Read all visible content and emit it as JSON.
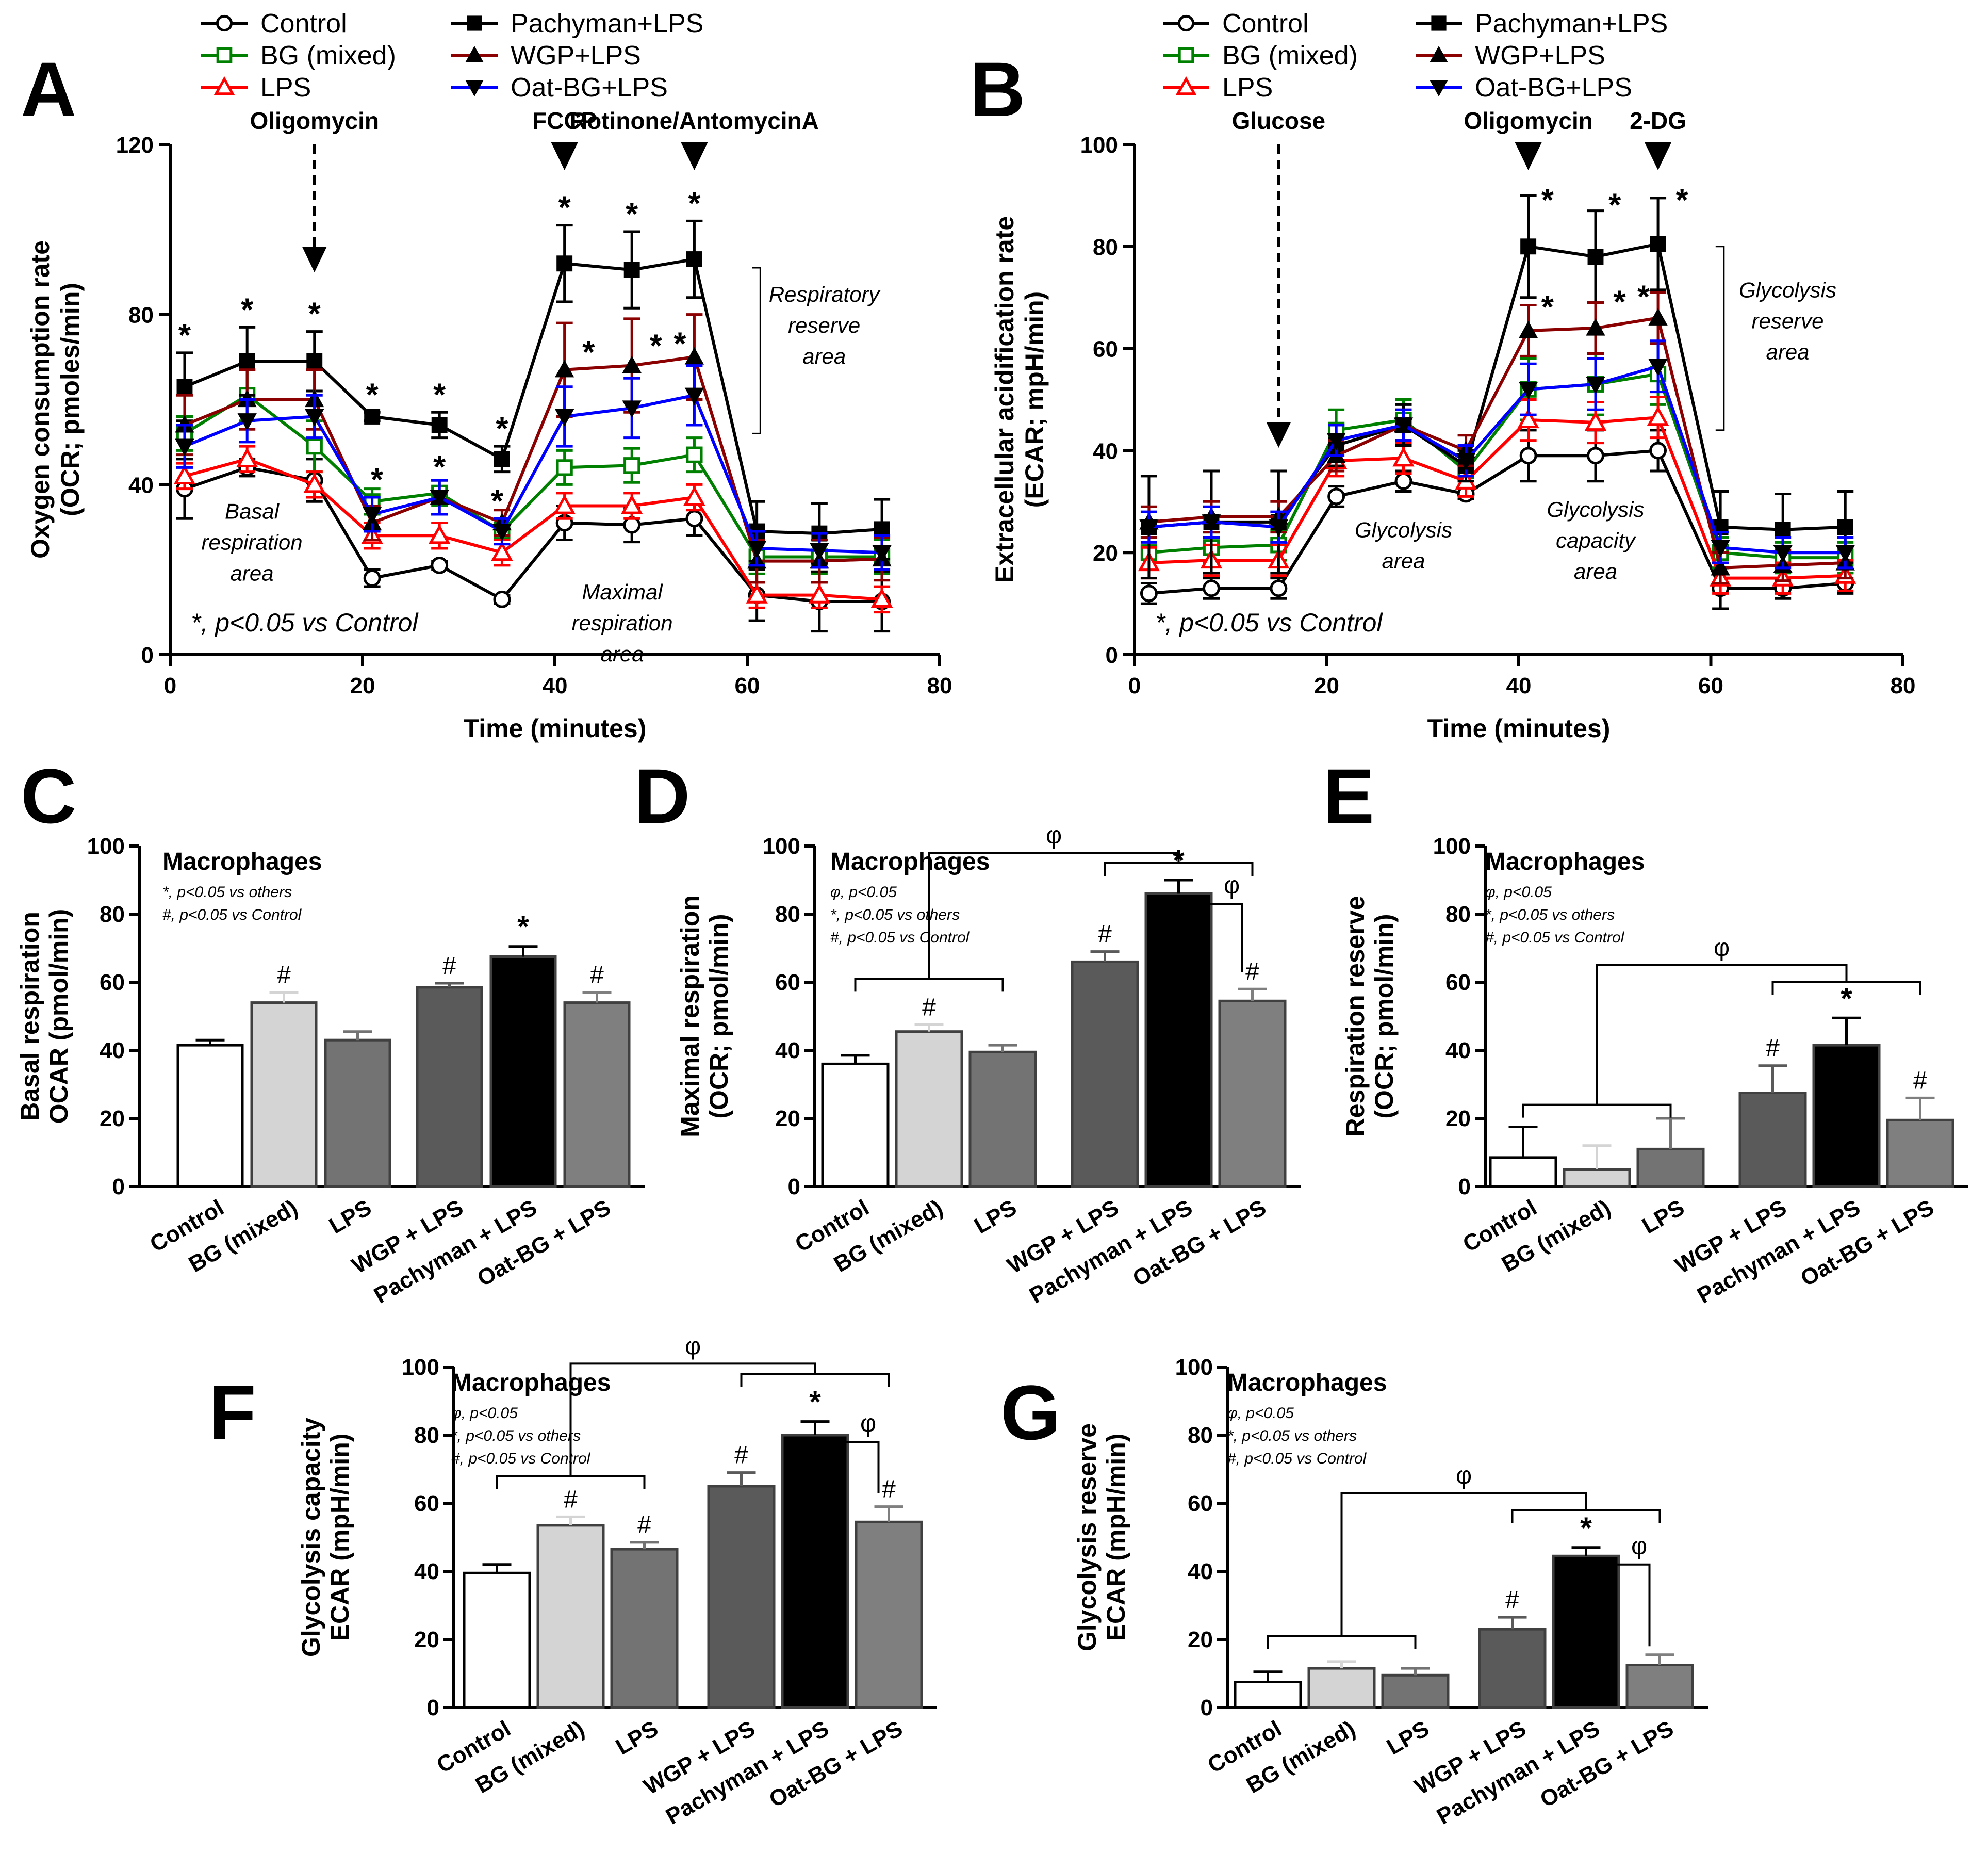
{
  "chart_data": [
    {
      "panel": "A",
      "type": "line",
      "xlabel": "Time (minutes)",
      "ylabel": [
        "Oxygen consumption rate",
        "(OCR; pmoles/min)"
      ],
      "xlim": [
        0,
        80
      ],
      "ylim": [
        0,
        120
      ],
      "xticks": [
        0,
        20,
        40,
        60,
        80
      ],
      "yticks": [
        0,
        40,
        80,
        120
      ],
      "x": [
        1.5,
        8,
        15,
        21,
        28,
        34.5,
        41,
        48,
        54.5,
        61,
        67.5,
        74
      ],
      "series": [
        {
          "name": "Control",
          "color": "#000000",
          "marker": "circle-open",
          "values": [
            39,
            44,
            41,
            18,
            21,
            13,
            31,
            30.5,
            32,
            14,
            12.5,
            12.5
          ],
          "err": [
            7,
            2,
            5,
            2,
            1,
            1,
            4,
            4,
            4,
            6,
            7,
            7
          ]
        },
        {
          "name": "BG (mixed)",
          "color": "#008000",
          "marker": "square-open",
          "values": [
            52,
            61,
            49,
            36,
            38,
            29,
            44,
            44.5,
            47,
            23,
            23,
            23
          ],
          "err": [
            4,
            6,
            6,
            3,
            3,
            2,
            4,
            4,
            4,
            4,
            4,
            4
          ]
        },
        {
          "name": "LPS",
          "color": "#ff0000",
          "marker": "triangle-open",
          "values": [
            42,
            46,
            40,
            28,
            28,
            24,
            35,
            35,
            37,
            14,
            14,
            13
          ],
          "err": [
            3,
            3,
            3,
            3,
            3,
            3,
            3,
            3,
            3,
            3,
            3,
            3
          ]
        },
        {
          "name": "Pachyman+LPS",
          "color": "#000000",
          "marker": "square-filled",
          "values": [
            63,
            69,
            69,
            56,
            54,
            46,
            92,
            90.5,
            93,
            29,
            28.5,
            29.5
          ],
          "err": [
            8,
            8,
            7,
            1,
            3,
            3,
            9,
            9,
            9,
            7,
            7,
            7
          ]
        },
        {
          "name": "WGP+LPS",
          "color": "#8b0000",
          "marker": "triangle-filled",
          "values": [
            54,
            60,
            60,
            31,
            37,
            31,
            67,
            68,
            70,
            22,
            22,
            22.5
          ],
          "err": [
            7,
            7,
            7,
            4,
            4,
            3,
            11,
            11,
            10,
            5,
            5,
            5
          ]
        },
        {
          "name": "Oat-BG+LPS",
          "color": "#0000ff",
          "marker": "triangle-down-filled",
          "values": [
            49,
            55,
            56,
            33,
            37,
            29,
            56,
            58,
            61,
            25,
            24.5,
            24
          ],
          "err": [
            5,
            5,
            5,
            4,
            4,
            3,
            7,
            7,
            7,
            4,
            4,
            4
          ]
        }
      ],
      "stars_top": [
        {
          "x": 1.5,
          "level": 1
        },
        {
          "x": 8,
          "level": 1
        },
        {
          "x": 15,
          "level": 1
        },
        {
          "x": 21,
          "level": 1
        },
        {
          "x": 28,
          "level": 1
        },
        {
          "x": 34.5,
          "level": 1
        },
        {
          "x": 41,
          "level": 1
        },
        {
          "x": 48,
          "level": 1
        },
        {
          "x": 54.5,
          "level": 1
        }
      ],
      "stars_mid": [
        {
          "x": 21.5,
          "y": 41
        },
        {
          "x": 28,
          "y": 44
        },
        {
          "x": 34,
          "y": 36
        },
        {
          "x": 43.5,
          "y": 71
        },
        {
          "x": 50.5,
          "y": 72.5
        },
        {
          "x": 53,
          "y": 73
        }
      ],
      "injections": [
        {
          "label": "Oligomycin",
          "x": 15,
          "style": "dashed"
        },
        {
          "label": "FCCP",
          "x": 41,
          "style": "triangle"
        },
        {
          "label": "Rotinone/AntomycinA",
          "x": 54.5,
          "style": "triangle"
        }
      ],
      "annotations": [
        {
          "lines": [
            "Basal",
            "respiration",
            "area"
          ],
          "x": 8.5,
          "y": 32
        },
        {
          "lines": [
            "Maximal",
            "respiration",
            "area"
          ],
          "x": 47,
          "y": 13
        },
        {
          "lines": [
            "Respiratory",
            "reserve",
            "area"
          ],
          "x": 68,
          "y": 83
        }
      ],
      "bracket": {
        "x": 60.5,
        "y1": 91,
        "y2": 52
      },
      "footnote": "*, p<0.05 vs Control"
    },
    {
      "panel": "B",
      "type": "line",
      "xlabel": "Time (minutes)",
      "ylabel": [
        "Extracellular acidification rate",
        "(ECAR; mpH/min)"
      ],
      "xlim": [
        0,
        80
      ],
      "ylim": [
        0,
        100
      ],
      "xticks": [
        0,
        20,
        40,
        60,
        80
      ],
      "yticks": [
        0,
        20,
        40,
        60,
        80,
        100
      ],
      "x": [
        1.5,
        8,
        15,
        21,
        28,
        34.5,
        41,
        48,
        54.5,
        61,
        67.5,
        74
      ],
      "series": [
        {
          "name": "Control",
          "color": "#000000",
          "marker": "circle-open",
          "values": [
            12,
            13,
            13,
            31,
            34,
            31.5,
            39,
            39,
            40,
            13,
            13,
            14
          ],
          "err": [
            2,
            2,
            2,
            2,
            2,
            1,
            5,
            5,
            4,
            4,
            2,
            2
          ]
        },
        {
          "name": "BG (mixed)",
          "color": "#008000",
          "marker": "square-open",
          "values": [
            20,
            21,
            21.5,
            44,
            46,
            36,
            52,
            53,
            55,
            20,
            19,
            19
          ],
          "err": [
            3,
            3,
            3,
            4,
            4,
            3,
            6,
            6,
            6,
            3,
            3,
            3
          ]
        },
        {
          "name": "LPS",
          "color": "#ff0000",
          "marker": "triangle-open",
          "values": [
            18,
            18.5,
            18.5,
            38,
            38.5,
            34,
            46,
            45.5,
            46.5,
            15,
            15,
            15.5
          ],
          "err": [
            3,
            3,
            3,
            3,
            3,
            3,
            4,
            4,
            4,
            3,
            3,
            3
          ]
        },
        {
          "name": "Pachyman+LPS",
          "color": "#000000",
          "marker": "square-filled",
          "values": [
            25,
            26,
            26,
            41,
            45,
            37,
            80,
            78,
            80.5,
            25,
            24.5,
            25
          ],
          "err": [
            10,
            10,
            10,
            4,
            4,
            3,
            10,
            9,
            9,
            7,
            7,
            7
          ]
        },
        {
          "name": "WGP+LPS",
          "color": "#8b0000",
          "marker": "triangle-filled",
          "values": [
            26,
            27,
            27,
            39,
            45,
            40,
            63.5,
            64,
            66,
            17,
            17.5,
            18
          ],
          "err": [
            3,
            3,
            3,
            3,
            3,
            3,
            5,
            5,
            5,
            3,
            3,
            3
          ]
        },
        {
          "name": "Oat-BG+LPS",
          "color": "#0000ff",
          "marker": "triangle-down-filled",
          "values": [
            25,
            26,
            25,
            42,
            45,
            38,
            52,
            53,
            56.5,
            21,
            20,
            20
          ],
          "err": [
            3,
            3,
            3,
            3,
            3,
            3,
            5,
            5,
            5,
            3,
            3,
            3
          ]
        }
      ],
      "stars_top": [
        {
          "x": 43,
          "y": 89
        },
        {
          "x": 50,
          "y": 88
        },
        {
          "x": 57,
          "y": 89
        }
      ],
      "stars_mid": [
        {
          "x": 43,
          "y": 68
        },
        {
          "x": 50.5,
          "y": 69
        },
        {
          "x": 53,
          "y": 70
        }
      ],
      "injections": [
        {
          "label": "Glucose",
          "x": 15,
          "style": "dashed"
        },
        {
          "label": "Oligomycin",
          "x": 41,
          "style": "triangle"
        },
        {
          "label": "2-DG",
          "x": 54.5,
          "style": "triangle"
        }
      ],
      "annotations": [
        {
          "lines": [
            "Glycolysis",
            "area"
          ],
          "x": 28,
          "y": 23
        },
        {
          "lines": [
            "Glycolysis",
            "capacity",
            "area"
          ],
          "x": 48,
          "y": 27
        },
        {
          "lines": [
            "Glycolysis",
            "reserve",
            "area"
          ],
          "x": 68,
          "y": 70
        }
      ],
      "bracket": {
        "x": 60.5,
        "y1": 80,
        "y2": 44
      },
      "footnote": "*, p<0.05 vs Control"
    },
    {
      "panel": "C",
      "type": "bar",
      "title": "Macrophages",
      "notes": [
        "*, p<0.05 vs others",
        "#, p<0.05 vs Control"
      ],
      "ylabel": [
        "Basal respiration",
        "OCAR (pmol/min)"
      ],
      "ylim": [
        0,
        100
      ],
      "yticks": [
        0,
        20,
        40,
        60,
        80,
        100
      ],
      "categories": [
        "Control",
        "BG (mixed)",
        "LPS",
        "WGP + LPS",
        "Pachyman + LPS",
        "Oat-BG + LPS"
      ],
      "values": [
        41.5,
        54,
        43,
        58.5,
        67.5,
        54
      ],
      "err": [
        1.5,
        3,
        2.5,
        1.2,
        3,
        3
      ],
      "colors": [
        "#ffffff",
        "#d4d4d4",
        "#737373",
        "#5a5a5a",
        "#000000",
        "#7f7f7f"
      ],
      "marks": [
        "",
        "#",
        "",
        "#",
        "*",
        "#"
      ],
      "brackets": []
    },
    {
      "panel": "D",
      "type": "bar",
      "title": "Macrophages",
      "notes": [
        "φ, p<0.05",
        "*, p<0.05 vs others",
        "#, p<0.05 vs Control"
      ],
      "ylabel": [
        "Maximal respiration",
        "(OCR; pmol/min)"
      ],
      "ylim": [
        0,
        100
      ],
      "yticks": [
        0,
        20,
        40,
        60,
        80,
        100
      ],
      "categories": [
        "Control",
        "BG (mixed)",
        "LPS",
        "WGP + LPS",
        "Pachyman + LPS",
        "Oat-BG + LPS"
      ],
      "values": [
        36,
        45.5,
        39.5,
        66,
        86,
        54.5
      ],
      "err": [
        2.5,
        2,
        2,
        3,
        4,
        3.5
      ],
      "colors": [
        "#ffffff",
        "#d4d4d4",
        "#737373",
        "#5a5a5a",
        "#000000",
        "#7f7f7f"
      ],
      "marks": [
        "",
        "#",
        "",
        "#",
        "*",
        "#"
      ],
      "brackets": [
        {
          "type": "join",
          "groupA": [
            1,
            3
          ],
          "groupB": [
            4,
            6
          ],
          "yA": 61,
          "yB": 95,
          "peak": 98,
          "label": "φ"
        },
        {
          "type": "pair",
          "from": 5,
          "to": 6,
          "y": 83,
          "down": 63,
          "label": "φ"
        }
      ]
    },
    {
      "panel": "E",
      "type": "bar",
      "title": "Macrophages",
      "notes": [
        "φ, p<0.05",
        "*, p<0.05 vs others",
        "#, p<0.05 vs Control"
      ],
      "ylabel": [
        "Respiration reserve",
        "(OCR; pmol/min)"
      ],
      "ylim": [
        0,
        100
      ],
      "yticks": [
        0,
        20,
        40,
        60,
        80,
        100
      ],
      "categories": [
        "Control",
        "BG (mixed)",
        "LPS",
        "WGP + LPS",
        "Pachyman + LPS",
        "Oat-BG + LPS"
      ],
      "values": [
        8.5,
        5,
        11,
        27.5,
        41.5,
        19.5
      ],
      "err": [
        9,
        7,
        9,
        8,
        8,
        6.5
      ],
      "colors": [
        "#ffffff",
        "#d4d4d4",
        "#737373",
        "#5a5a5a",
        "#000000",
        "#7f7f7f"
      ],
      "marks": [
        "",
        "",
        "",
        "#",
        "*",
        "#"
      ],
      "brackets": [
        {
          "type": "join",
          "groupA": [
            1,
            3
          ],
          "groupB": [
            4,
            6
          ],
          "yA": 24,
          "yB": 60,
          "peak": 65,
          "label": "φ"
        }
      ]
    },
    {
      "panel": "F",
      "type": "bar",
      "title": "Macrophages",
      "notes": [
        "φ, p<0.05",
        "*, p<0.05 vs others",
        "#, p<0.05 vs Control"
      ],
      "ylabel": [
        "Glycolysis capacity",
        "ECAR (mpH/min)"
      ],
      "ylim": [
        0,
        100
      ],
      "yticks": [
        0,
        20,
        40,
        60,
        80,
        100
      ],
      "categories": [
        "Control",
        "BG (mixed)",
        "LPS",
        "WGP + LPS",
        "Pachyman + LPS",
        "Oat-BG + LPS"
      ],
      "values": [
        39.5,
        53.5,
        46.5,
        65,
        80,
        54.5
      ],
      "err": [
        2.5,
        2.5,
        2,
        4,
        4,
        4.5
      ],
      "colors": [
        "#ffffff",
        "#d4d4d4",
        "#737373",
        "#5a5a5a",
        "#000000",
        "#7f7f7f"
      ],
      "marks": [
        "",
        "#",
        "#",
        "#",
        "*",
        "#"
      ],
      "brackets": [
        {
          "type": "join",
          "groupA": [
            1,
            3
          ],
          "groupB": [
            4,
            6
          ],
          "yA": 68,
          "yB": 98,
          "peak": 101,
          "label": "φ"
        },
        {
          "type": "pair",
          "from": 5,
          "to": 6,
          "y": 78,
          "down": 63,
          "label": "φ"
        }
      ]
    },
    {
      "panel": "G",
      "type": "bar",
      "title": "Macrophages",
      "notes": [
        "φ, p<0.05",
        "*, p<0.05 vs others",
        "#, p<0.05 vs Control"
      ],
      "ylabel": [
        "Glycolysis reserve",
        "ECAR (mpH/min)"
      ],
      "ylim": [
        0,
        100
      ],
      "yticks": [
        0,
        20,
        40,
        60,
        80,
        100
      ],
      "categories": [
        "Control",
        "BG (mixed)",
        "LPS",
        "WGP + LPS",
        "Pachyman + LPS",
        "Oat-BG + LPS"
      ],
      "values": [
        7.5,
        11.5,
        9.5,
        23,
        44.5,
        12.5
      ],
      "err": [
        3,
        2,
        2,
        3.5,
        2.5,
        3
      ],
      "colors": [
        "#ffffff",
        "#d4d4d4",
        "#737373",
        "#5a5a5a",
        "#000000",
        "#7f7f7f"
      ],
      "marks": [
        "",
        "",
        "",
        "#",
        "*",
        ""
      ],
      "brackets": [
        {
          "type": "join",
          "groupA": [
            1,
            3
          ],
          "groupB": [
            4,
            6
          ],
          "yA": 21,
          "yB": 58,
          "peak": 63,
          "label": "φ"
        },
        {
          "type": "pair",
          "from": 5,
          "to": 6,
          "y": 42,
          "down": 18,
          "label": "φ"
        }
      ]
    }
  ]
}
